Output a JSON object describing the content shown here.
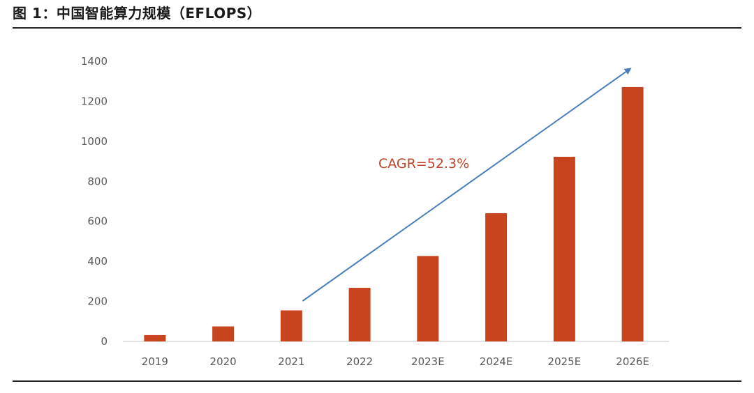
{
  "figure": {
    "title": "图 1：中国智能算力规模（EFLOPS）"
  },
  "chart_data": {
    "type": "bar",
    "categories": [
      "2019",
      "2020",
      "2021",
      "2022",
      "2023E",
      "2024E",
      "2025E",
      "2026E"
    ],
    "values": [
      31.7,
      75.0,
      155.2,
      268.0,
      427.0,
      640.7,
      922.8,
      1271.4
    ],
    "title": "中国智能算力规模（EFLOPS）",
    "xlabel": "",
    "ylabel": "",
    "ylim": [
      0,
      1400
    ],
    "yticks": [
      0,
      200,
      400,
      600,
      800,
      1000,
      1200,
      1400
    ],
    "grid": false,
    "legend": "none",
    "bar_color": "#c8441f",
    "annotation": {
      "text": "CAGR=52.3%",
      "color": "#c0452a",
      "arrow_color": "#4a7ebb"
    }
  }
}
